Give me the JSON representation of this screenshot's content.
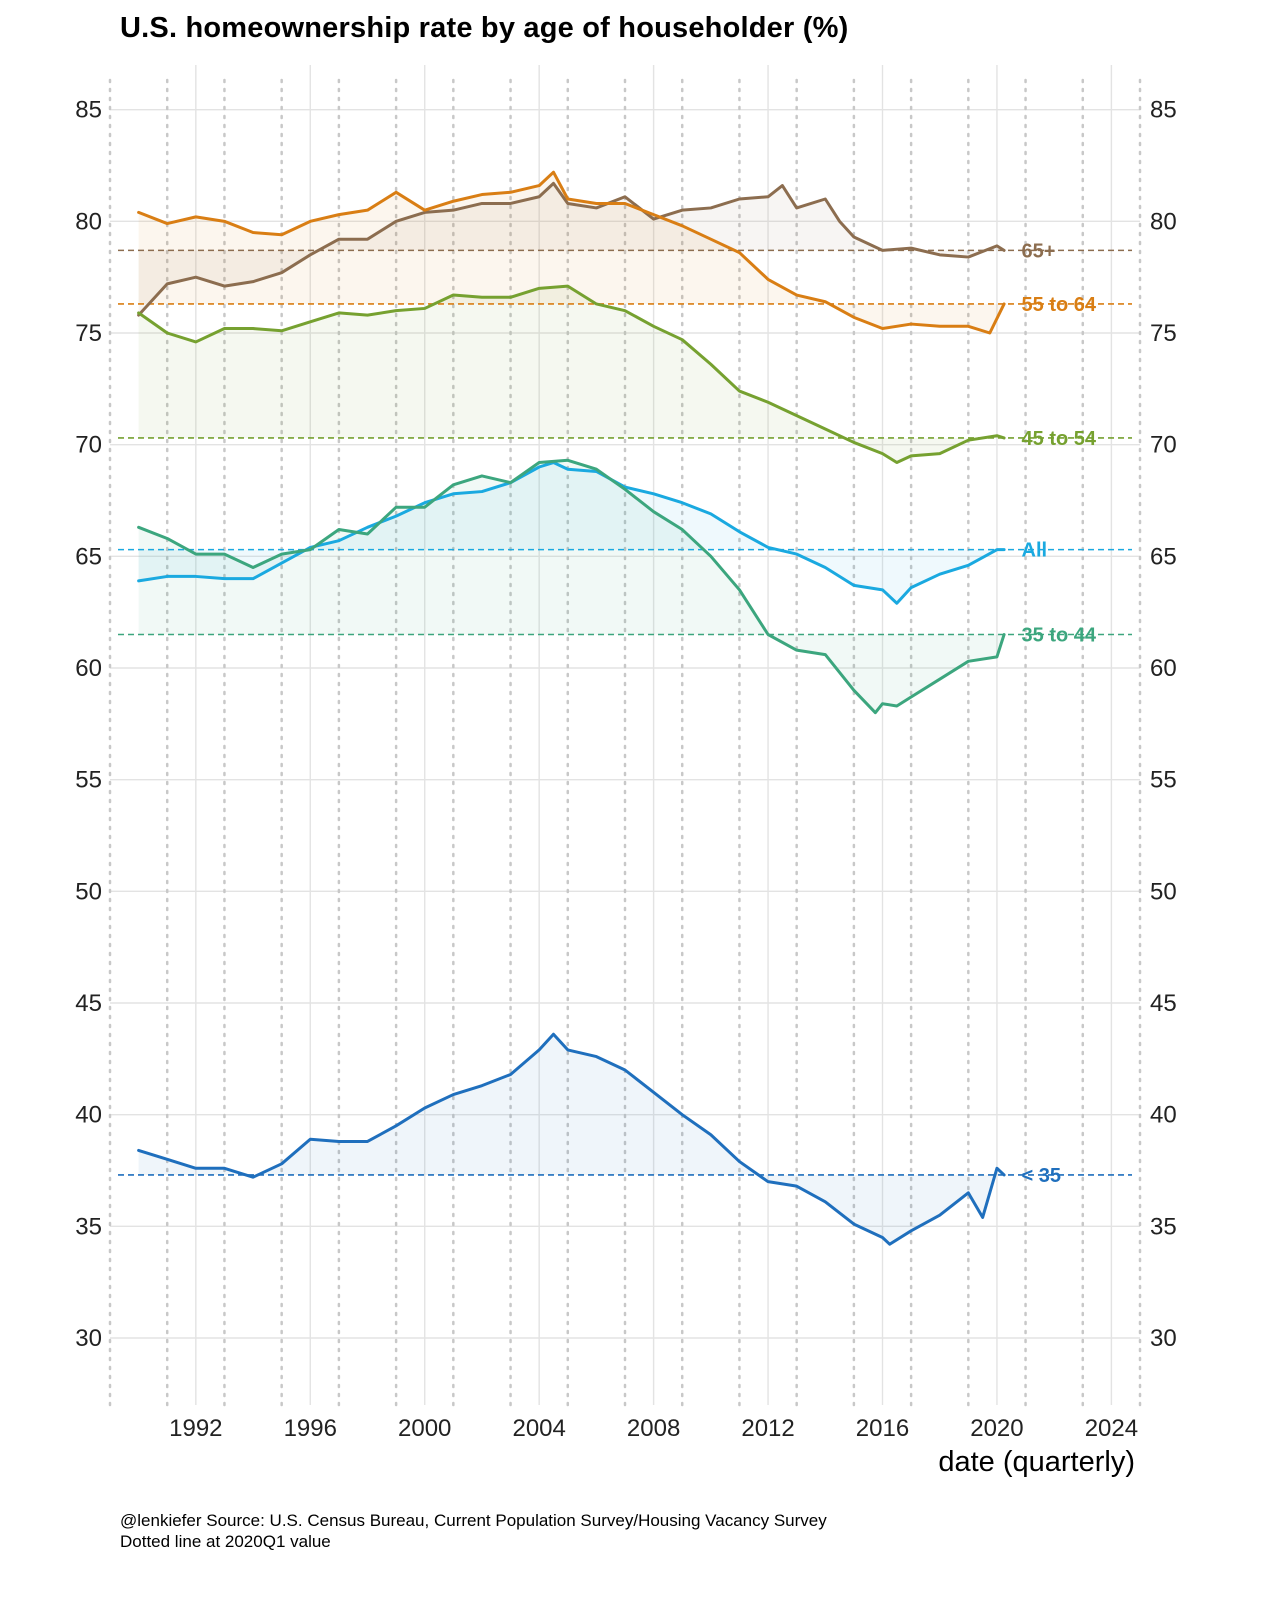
{
  "chart_data": {
    "type": "line",
    "title": "U.S. homeownership rate by age of householder (%)",
    "xlabel": "date (quarterly)",
    "ylabel": "",
    "xlim": [
      1989,
      2025
    ],
    "ylim": [
      27,
      87
    ],
    "x_ticks": [
      1992,
      1996,
      2000,
      2004,
      2008,
      2012,
      2016,
      2020,
      2024
    ],
    "x_tick_labels": [
      "1992",
      "1996",
      "2000",
      "2004",
      "2008",
      "2012",
      "2016",
      "2020",
      "2024"
    ],
    "y_ticks": [
      30,
      35,
      40,
      45,
      50,
      55,
      60,
      65,
      70,
      75,
      80,
      85
    ],
    "y_tick_labels": [
      "30",
      "35",
      "40",
      "45",
      "50",
      "55",
      "60",
      "65",
      "70",
      "75",
      "80",
      "85"
    ],
    "y_axis_both_sides": true,
    "grid": true,
    "dotted_vertical_lines_every_year": true,
    "reference_date": "2020Q1",
    "series": [
      {
        "name": "65+",
        "label": "65+",
        "color": "#8c6d4f",
        "reference_value": 78.7,
        "x": [
          1990.0,
          1991.0,
          1992.0,
          1993.0,
          1994.0,
          1995.0,
          1996.0,
          1997.0,
          1998.0,
          1999.0,
          2000.0,
          2001.0,
          2002.0,
          2003.0,
          2004.0,
          2004.5,
          2005.0,
          2006.0,
          2007.0,
          2008.0,
          2009.0,
          2010.0,
          2011.0,
          2012.0,
          2012.5,
          2013.0,
          2014.0,
          2014.5,
          2015.0,
          2016.0,
          2017.0,
          2018.0,
          2019.0,
          2020.0,
          2020.25
        ],
        "values": [
          75.8,
          77.2,
          77.5,
          77.1,
          77.3,
          77.7,
          78.5,
          79.2,
          79.2,
          80.0,
          80.4,
          80.5,
          80.8,
          80.8,
          81.1,
          81.7,
          80.8,
          80.6,
          81.1,
          80.1,
          80.5,
          80.6,
          81.0,
          81.1,
          81.6,
          80.6,
          81.0,
          80.0,
          79.3,
          78.7,
          78.8,
          78.5,
          78.4,
          78.9,
          78.7
        ]
      },
      {
        "name": "55 to 64",
        "label": "55 to 64",
        "color": "#d97e14",
        "reference_value": 76.3,
        "x": [
          1990.0,
          1991.0,
          1992.0,
          1993.0,
          1994.0,
          1995.0,
          1996.0,
          1997.0,
          1998.0,
          1999.0,
          2000.0,
          2001.0,
          2002.0,
          2003.0,
          2004.0,
          2004.5,
          2005.0,
          2006.0,
          2007.0,
          2008.0,
          2009.0,
          2010.0,
          2011.0,
          2012.0,
          2013.0,
          2014.0,
          2015.0,
          2016.0,
          2017.0,
          2018.0,
          2019.0,
          2019.75,
          2020.25
        ],
        "values": [
          80.4,
          79.9,
          80.2,
          80.0,
          79.5,
          79.4,
          80.0,
          80.3,
          80.5,
          81.3,
          80.5,
          80.9,
          81.2,
          81.3,
          81.6,
          82.2,
          81.0,
          80.8,
          80.8,
          80.3,
          79.8,
          79.2,
          78.6,
          77.4,
          76.7,
          76.4,
          75.7,
          75.2,
          75.4,
          75.3,
          75.3,
          75.0,
          76.3
        ]
      },
      {
        "name": "45 to 54",
        "label": "45 to 54",
        "color": "#76a130",
        "reference_value": 70.3,
        "x": [
          1990.0,
          1991.0,
          1992.0,
          1993.0,
          1994.0,
          1995.0,
          1996.0,
          1997.0,
          1998.0,
          1999.0,
          2000.0,
          2001.0,
          2002.0,
          2003.0,
          2004.0,
          2005.0,
          2006.0,
          2007.0,
          2008.0,
          2009.0,
          2010.0,
          2011.0,
          2012.0,
          2013.0,
          2014.0,
          2015.0,
          2016.0,
          2016.5,
          2017.0,
          2018.0,
          2019.0,
          2020.0,
          2020.25
        ],
        "values": [
          75.9,
          75.0,
          74.6,
          75.2,
          75.2,
          75.1,
          75.5,
          75.9,
          75.8,
          76.0,
          76.1,
          76.7,
          76.6,
          76.6,
          77.0,
          77.1,
          76.3,
          76.0,
          75.3,
          74.7,
          73.6,
          72.4,
          71.9,
          71.3,
          70.7,
          70.1,
          69.6,
          69.2,
          69.5,
          69.6,
          70.2,
          70.4,
          70.3
        ]
      },
      {
        "name": "All",
        "label": "All",
        "color": "#1aa9e0",
        "reference_value": 65.3,
        "x": [
          1990.0,
          1991.0,
          1992.0,
          1993.0,
          1994.0,
          1995.0,
          1996.0,
          1997.0,
          1998.0,
          1999.0,
          2000.0,
          2001.0,
          2002.0,
          2003.0,
          2004.0,
          2004.5,
          2005.0,
          2006.0,
          2007.0,
          2008.0,
          2009.0,
          2010.0,
          2011.0,
          2012.0,
          2013.0,
          2014.0,
          2015.0,
          2016.0,
          2016.5,
          2017.0,
          2018.0,
          2019.0,
          2020.0,
          2020.25
        ],
        "values": [
          63.9,
          64.1,
          64.1,
          64.0,
          64.0,
          64.7,
          65.4,
          65.7,
          66.3,
          66.8,
          67.4,
          67.8,
          67.9,
          68.3,
          69.0,
          69.2,
          68.9,
          68.8,
          68.1,
          67.8,
          67.4,
          66.9,
          66.1,
          65.4,
          65.1,
          64.5,
          63.7,
          63.5,
          62.9,
          63.6,
          64.2,
          64.6,
          65.3,
          65.3
        ]
      },
      {
        "name": "35 to 44",
        "label": "35 to 44",
        "color": "#3ca67e",
        "reference_value": 61.5,
        "x": [
          1990.0,
          1991.0,
          1992.0,
          1993.0,
          1994.0,
          1995.0,
          1996.0,
          1997.0,
          1998.0,
          1999.0,
          2000.0,
          2001.0,
          2002.0,
          2003.0,
          2004.0,
          2005.0,
          2006.0,
          2007.0,
          2008.0,
          2009.0,
          2010.0,
          2011.0,
          2012.0,
          2013.0,
          2014.0,
          2015.0,
          2015.75,
          2016.0,
          2016.5,
          2017.0,
          2018.0,
          2019.0,
          2020.0,
          2020.25
        ],
        "values": [
          66.3,
          65.8,
          65.1,
          65.1,
          64.5,
          65.1,
          65.3,
          66.2,
          66.0,
          67.2,
          67.2,
          68.2,
          68.6,
          68.3,
          69.2,
          69.3,
          68.9,
          68.0,
          67.0,
          66.2,
          65.0,
          63.5,
          61.5,
          60.8,
          60.6,
          59.0,
          58.0,
          58.4,
          58.3,
          58.7,
          59.5,
          60.3,
          60.5,
          61.5
        ]
      },
      {
        "name": "< 35",
        "label": "< 35",
        "color": "#1f6fbd",
        "reference_value": 37.3,
        "x": [
          1990.0,
          1991.0,
          1992.0,
          1993.0,
          1994.0,
          1995.0,
          1996.0,
          1997.0,
          1998.0,
          1999.0,
          2000.0,
          2001.0,
          2002.0,
          2003.0,
          2004.0,
          2004.5,
          2005.0,
          2006.0,
          2007.0,
          2008.0,
          2009.0,
          2010.0,
          2011.0,
          2012.0,
          2013.0,
          2014.0,
          2015.0,
          2016.0,
          2016.25,
          2017.0,
          2018.0,
          2019.0,
          2019.5,
          2020.0,
          2020.25
        ],
        "values": [
          38.4,
          38.0,
          37.6,
          37.6,
          37.2,
          37.8,
          38.9,
          38.8,
          38.8,
          39.5,
          40.3,
          40.9,
          41.3,
          41.8,
          42.9,
          43.6,
          42.9,
          42.6,
          42.0,
          41.0,
          40.0,
          39.1,
          37.9,
          37.0,
          36.8,
          36.1,
          35.1,
          34.5,
          34.2,
          34.8,
          35.5,
          36.5,
          35.4,
          37.6,
          37.3
        ]
      }
    ],
    "caption_lines": [
      "@lenkiefer Source: U.S. Census Bureau, Current Population Survey/Housing Vacancy Survey",
      "Dotted line at 2020Q1 value"
    ]
  }
}
